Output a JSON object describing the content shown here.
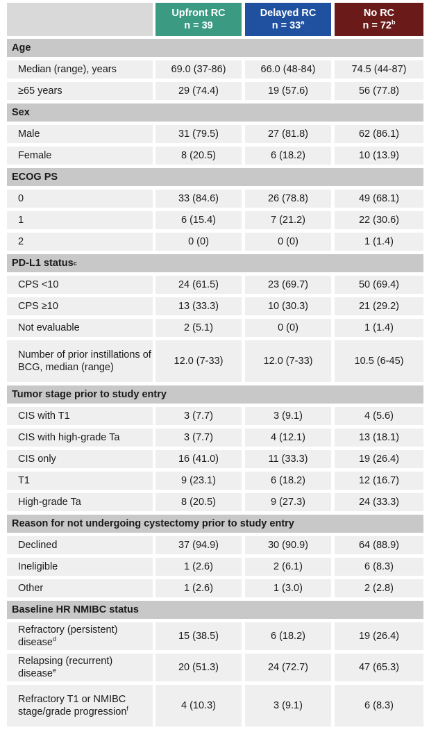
{
  "header": {
    "columns": [
      {
        "name": "Upfront RC",
        "n": "n = 39",
        "sup": "",
        "color": "#3b9a82"
      },
      {
        "name": "Delayed RC",
        "n": "n = 33",
        "sup": "a",
        "color": "#2050a0"
      },
      {
        "name": "No RC",
        "n": "n = 72",
        "sup": "b",
        "color": "#6b1a1a"
      }
    ]
  },
  "sections": [
    {
      "title": "Age",
      "sup": "",
      "rows": [
        {
          "label": "Median (range), years",
          "sup": "",
          "values": [
            "69.0 (37-86)",
            "66.0 (48-84)",
            "74.5 (44-87)"
          ]
        },
        {
          "label": "≥65 years",
          "sup": "",
          "values": [
            "29 (74.4)",
            "19 (57.6)",
            "56 (77.8)"
          ]
        }
      ]
    },
    {
      "title": "Sex",
      "sup": "",
      "rows": [
        {
          "label": "Male",
          "sup": "",
          "values": [
            "31 (79.5)",
            "27 (81.8)",
            "62 (86.1)"
          ]
        },
        {
          "label": "Female",
          "sup": "",
          "values": [
            "8 (20.5)",
            "6 (18.2)",
            "10 (13.9)"
          ]
        }
      ]
    },
    {
      "title": "ECOG PS",
      "sup": "",
      "rows": [
        {
          "label": "0",
          "sup": "",
          "values": [
            "33 (84.6)",
            "26 (78.8)",
            "49 (68.1)"
          ]
        },
        {
          "label": "1",
          "sup": "",
          "values": [
            "6 (15.4)",
            "7 (21.2)",
            "22 (30.6)"
          ]
        },
        {
          "label": "2",
          "sup": "",
          "values": [
            "0 (0)",
            "0 (0)",
            "1 (1.4)"
          ]
        }
      ]
    },
    {
      "title": "PD-L1 status",
      "sup": "c",
      "rows": [
        {
          "label": "CPS <10",
          "sup": "",
          "values": [
            "24 (61.5)",
            "23 (69.7)",
            "50 (69.4)"
          ]
        },
        {
          "label": "CPS ≥10",
          "sup": "",
          "values": [
            "13 (33.3)",
            "10 (30.3)",
            "21 (29.2)"
          ]
        },
        {
          "label": "Not evaluable",
          "sup": "",
          "values": [
            "2 (5.1)",
            "0 (0)",
            "1 (1.4)"
          ]
        },
        {
          "label": "Number of prior instillations of BCG, median (range)",
          "sup": "",
          "values": [
            "12.0 (7-33)",
            "12.0 (7-33)",
            "10.5 (6-45)"
          ]
        }
      ]
    },
    {
      "title": "Tumor stage prior to study entry",
      "sup": "",
      "rows": [
        {
          "label": "CIS with T1",
          "sup": "",
          "values": [
            "3 (7.7)",
            "3 (9.1)",
            "4 (5.6)"
          ]
        },
        {
          "label": "CIS with high-grade Ta",
          "sup": "",
          "values": [
            "3 (7.7)",
            "4 (12.1)",
            "13 (18.1)"
          ]
        },
        {
          "label": "CIS only",
          "sup": "",
          "values": [
            "16 (41.0)",
            "11 (33.3)",
            "19 (26.4)"
          ]
        },
        {
          "label": "T1",
          "sup": "",
          "values": [
            "9 (23.1)",
            "6 (18.2)",
            "12 (16.7)"
          ]
        },
        {
          "label": "High-grade Ta",
          "sup": "",
          "values": [
            "8 (20.5)",
            "9 (27.3)",
            "24 (33.3)"
          ]
        }
      ]
    },
    {
      "title": "Reason for not undergoing cystectomy prior to study entry",
      "sup": "",
      "rows": [
        {
          "label": "Declined",
          "sup": "",
          "values": [
            "37 (94.9)",
            "30 (90.9)",
            "64 (88.9)"
          ]
        },
        {
          "label": "Ineligible",
          "sup": "",
          "values": [
            "1 (2.6)",
            "2 (6.1)",
            "6 (8.3)"
          ]
        },
        {
          "label": "Other",
          "sup": "",
          "values": [
            "1 (2.6)",
            "1 (3.0)",
            "2 (2.8)"
          ]
        }
      ]
    },
    {
      "title": "Baseline HR NMIBC status",
      "sup": "",
      "rows": [
        {
          "label": "Refractory (persistent) disease",
          "sup": "d",
          "values": [
            "15 (38.5)",
            "6 (18.2)",
            "19 (26.4)"
          ]
        },
        {
          "label": "Relapsing (recurrent) disease",
          "sup": "e",
          "values": [
            "20 (51.3)",
            "24 (72.7)",
            "47 (65.3)"
          ]
        },
        {
          "label": "Refractory T1 or NMIBC stage/grade progression",
          "sup": "f",
          "values": [
            "4 (10.3)",
            "3 (9.1)",
            "6 (8.3)"
          ]
        }
      ]
    }
  ]
}
